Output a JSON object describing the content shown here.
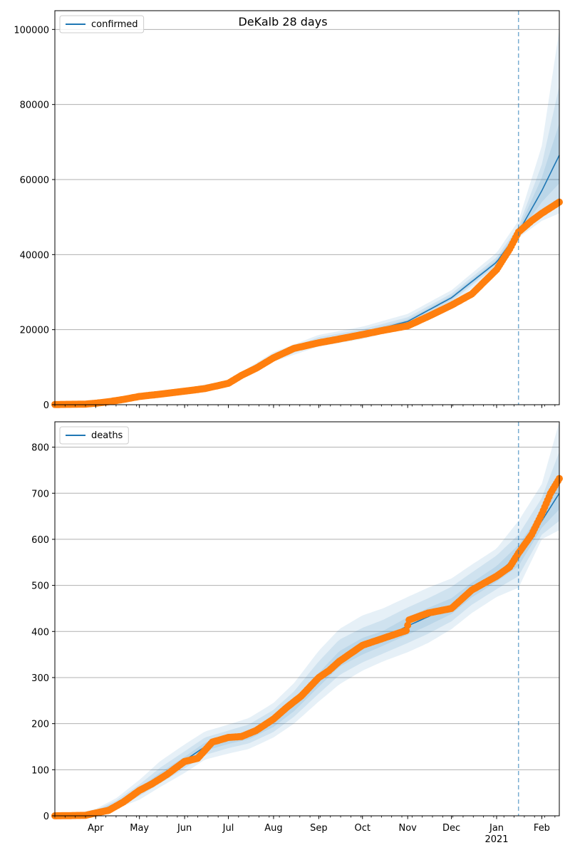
{
  "figure_title": "DeKalb 28 days",
  "colors": {
    "model_line": "#1f77b4",
    "band": "#1f77b4",
    "observed": "#ff7f0e",
    "grid": "#b0b0b0",
    "vline": "#1f77b4"
  },
  "x_axis": {
    "start_date": "2020-03-04",
    "end_date": "2021-02-13",
    "tick_labels": [
      "Apr",
      "May",
      "Jun",
      "Jul",
      "Aug",
      "Sep",
      "Oct",
      "Nov",
      "Dec",
      "Jan",
      "Feb"
    ],
    "year_label": "2021",
    "forecast_date": "2021-01-16"
  },
  "chart_data": [
    {
      "type": "line",
      "series_name": "confirmed",
      "legend": "confirmed",
      "legend_position": "upper-left",
      "ylim": [
        0,
        105000
      ],
      "yticks": [
        0,
        20000,
        40000,
        60000,
        80000,
        100000
      ],
      "grid": "y",
      "model": {
        "x": [
          "2020-03-04",
          "2020-04-01",
          "2020-05-01",
          "2020-06-01",
          "2020-07-01",
          "2020-08-01",
          "2020-09-01",
          "2020-10-01",
          "2020-11-01",
          "2020-12-01",
          "2021-01-01",
          "2021-01-16",
          "2021-02-01",
          "2021-02-13"
        ],
        "y": [
          100,
          500,
          2300,
          3800,
          5800,
          12800,
          17000,
          19000,
          22200,
          28500,
          38000,
          46000,
          57000,
          66500
        ],
        "bands": [
          {
            "lower": [
              0,
              350,
              1900,
              3300,
              5200,
              11500,
              15500,
              17500,
              20600,
              26800,
              36000,
              44500,
              49000,
              51000
            ],
            "upper": [
              250,
              700,
              2700,
              4400,
              6500,
              14000,
              18600,
              20800,
              24200,
              30500,
              40500,
              49000,
              69000,
              100000
            ]
          },
          {
            "lower": [
              0,
              400,
              2050,
              3500,
              5400,
              12000,
              16100,
              18200,
              21300,
              27500,
              37000,
              45000,
              51500,
              55000
            ],
            "upper": [
              200,
              620,
              2550,
              4150,
              6200,
              13500,
              18000,
              20100,
              23300,
              29600,
              39300,
              47500,
              64000,
              85000
            ]
          },
          {
            "lower": [
              50,
              450,
              2200,
              3650,
              5600,
              12400,
              16550,
              18600,
              21800,
              28000,
              37500,
              45500,
              54000,
              59000
            ],
            "upper": [
              150,
              560,
              2420,
              3950,
              6000,
              13150,
              17450,
              19500,
              22700,
              29000,
              38600,
              46800,
              60500,
              75000
            ]
          }
        ]
      },
      "observed": {
        "x": [
          "2020-03-04",
          "2020-03-15",
          "2020-03-25",
          "2020-04-01",
          "2020-04-10",
          "2020-04-20",
          "2020-05-01",
          "2020-05-15",
          "2020-06-01",
          "2020-06-15",
          "2020-07-01",
          "2020-07-10",
          "2020-07-20",
          "2020-08-01",
          "2020-08-15",
          "2020-09-01",
          "2020-09-15",
          "2020-10-01",
          "2020-10-15",
          "2020-11-01",
          "2020-11-15",
          "2020-12-01",
          "2020-12-15",
          "2021-01-01",
          "2021-01-10",
          "2021-01-16",
          "2021-01-25",
          "2021-02-01",
          "2021-02-07",
          "2021-02-13"
        ],
        "y": [
          50,
          100,
          150,
          400,
          800,
          1400,
          2200,
          2800,
          3600,
          4300,
          5700,
          7800,
          9700,
          12500,
          15000,
          16500,
          17500,
          18700,
          19800,
          21000,
          23500,
          26500,
          29500,
          36000,
          41500,
          46000,
          49000,
          51000,
          52500,
          54000
        ]
      }
    },
    {
      "type": "line",
      "series_name": "deaths",
      "legend": "deaths",
      "legend_position": "upper-left",
      "ylim": [
        0,
        855
      ],
      "yticks": [
        0,
        100,
        200,
        300,
        400,
        500,
        600,
        700,
        800
      ],
      "grid": "y",
      "model": {
        "x": [
          "2020-03-04",
          "2020-03-20",
          "2020-04-01",
          "2020-04-15",
          "2020-05-01",
          "2020-05-15",
          "2020-06-01",
          "2020-06-15",
          "2020-07-01",
          "2020-07-15",
          "2020-08-01",
          "2020-08-15",
          "2020-09-01",
          "2020-09-15",
          "2020-10-01",
          "2020-10-15",
          "2020-11-01",
          "2020-11-15",
          "2020-12-01",
          "2020-12-15",
          "2021-01-01",
          "2021-01-16",
          "2021-02-01",
          "2021-02-13"
        ],
        "y": [
          0,
          2,
          8,
          25,
          55,
          85,
          120,
          150,
          165,
          175,
          205,
          240,
          295,
          340,
          368,
          385,
          412,
          432,
          455,
          490,
          525,
          565,
          640,
          700
        ],
        "bands": [
          {
            "lower": [
              0,
              0,
              3,
              15,
              35,
              62,
              93,
              122,
              135,
              145,
              170,
              200,
              248,
              285,
              315,
              335,
              355,
              375,
              405,
              440,
              475,
              495,
              600,
              620
            ],
            "upper": [
              3,
              6,
              15,
              38,
              78,
              118,
              155,
              183,
              198,
              212,
              245,
              288,
              358,
              405,
              435,
              450,
              475,
              495,
              515,
              545,
              580,
              640,
              720,
              855
            ]
          },
          {
            "lower": [
              0,
              0,
              5,
              18,
              43,
              70,
              103,
              132,
              147,
              157,
              182,
              215,
              265,
              305,
              333,
              352,
              375,
              395,
              422,
              458,
              492,
              520,
              610,
              640
            ],
            "upper": [
              2,
              4,
              12,
              33,
              68,
              104,
              140,
              170,
              185,
              198,
              230,
              270,
              335,
              382,
              408,
              425,
              452,
              472,
              497,
              528,
              565,
              610,
              690,
              790
            ]
          },
          {
            "lower": [
              0,
              1,
              6,
              21,
              49,
              77,
              112,
              141,
              156,
              166,
              193,
              227,
              280,
              323,
              350,
              369,
              393,
              413,
              438,
              474,
              508,
              542,
              625,
              665
            ],
            "upper": [
              1,
              3,
              10,
              29,
              61,
              93,
              128,
              159,
              174,
              184,
              217,
              253,
              310,
              357,
              386,
              401,
              431,
              451,
              472,
              506,
              542,
              588,
              660,
              740
            ]
          }
        ]
      },
      "observed": {
        "x": [
          "2020-03-04",
          "2020-03-25",
          "2020-04-01",
          "2020-04-10",
          "2020-04-20",
          "2020-05-01",
          "2020-05-10",
          "2020-05-20",
          "2020-06-01",
          "2020-06-10",
          "2020-06-20",
          "2020-07-01",
          "2020-07-10",
          "2020-07-20",
          "2020-08-01",
          "2020-08-10",
          "2020-08-20",
          "2020-09-01",
          "2020-09-08",
          "2020-09-15",
          "2020-10-01",
          "2020-10-15",
          "2020-10-31",
          "2020-11-02",
          "2020-11-15",
          "2020-12-01",
          "2020-12-15",
          "2021-01-01",
          "2021-01-10",
          "2021-01-16",
          "2021-01-25",
          "2021-02-01",
          "2021-02-07",
          "2021-02-13"
        ],
        "y": [
          0,
          1,
          6,
          12,
          30,
          55,
          70,
          90,
          118,
          125,
          160,
          170,
          172,
          185,
          210,
          235,
          260,
          300,
          315,
          335,
          370,
          385,
          402,
          425,
          440,
          450,
          490,
          520,
          540,
          570,
          610,
          655,
          700,
          732
        ]
      }
    }
  ]
}
